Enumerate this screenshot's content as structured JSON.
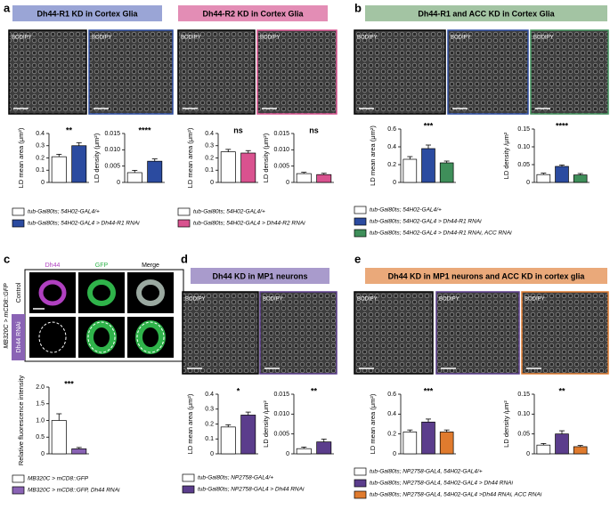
{
  "panel_labels": [
    "a",
    "b",
    "c",
    "d",
    "e"
  ],
  "headers": [
    "Dh44-R1 KD in Cortex Glia",
    "Dh44-R2 KD in Cortex Glia",
    "Dh44-R1 and ACC KD in Cortex Glia",
    "Dh44 KD in MP1 neurons",
    "Dh44 KD in MP1 neurons and ACC KD in cortex glia"
  ],
  "image_label": "BODIPY",
  "panel_c": {
    "columns": [
      "Dh44",
      "GFP",
      "Merge"
    ],
    "rows": [
      "Control",
      "Dh44 RNAi"
    ],
    "genotype": "MB320C > mCD8::GFP"
  },
  "legends": [
    [
      {
        "label": "tub-Gal80ts; 54H02-GAL4/+",
        "color": "#ffffff"
      },
      {
        "label": "tub-Gal80ts; 54H02-GAL4 > Dh44-R1 RNAi",
        "color": "#2b4ba0"
      }
    ],
    [
      {
        "label": "tub-Gal80ts; 54H02-GAL4/+",
        "color": "#ffffff"
      },
      {
        "label": "tub-Gal80ts; 54H02-GAL4 > Dh44-R2 RNAi",
        "color": "#d9528f"
      }
    ],
    [
      {
        "label": "tub-Gal80ts; 54H02-GAL4/+",
        "color": "#ffffff"
      },
      {
        "label": "tub-Gal80ts; 54H02-GAL4 > Dh44-R1 RNAi",
        "color": "#2b4ba0"
      },
      {
        "label": "tub-Gal80ts; 54H02-GAL4 > Dh44-R1 RNAi, ACC RNAi",
        "color": "#3f8f5a"
      }
    ],
    [
      {
        "label": "MB320C > mCD8::GFP",
        "color": "#ffffff"
      },
      {
        "label": "MB320C > mCD8::GFP, Dh44 RNAi",
        "color": "#8a63b5"
      }
    ],
    [
      {
        "label": "tub-Gal80ts; NP2758-GAL4/+",
        "color": "#ffffff"
      },
      {
        "label": "tub-Gal80ts; NP2758-GAL4 > Dh44 RNAi",
        "color": "#5b3d8c"
      }
    ],
    [
      {
        "label": "tub-Gal80ts; NP2758-GAL4, 54H02-GAL4/+",
        "color": "#ffffff"
      },
      {
        "label": "tub-Gal80ts; NP2758-GAL4, 54H02-GAL4 > Dh44 RNAi",
        "color": "#5b3d8c"
      },
      {
        "label": "tub-Gal80ts; NP2758-GAL4, 54H02-GAL4 >Dh44 RNAi, ACC RNAi",
        "color": "#e07b2e"
      }
    ]
  ],
  "chart_data": [
    {
      "type": "bar",
      "ylabel": "LD mean area (μm²)",
      "ylim": [
        0,
        0.4
      ],
      "yticks": [
        0,
        0.1,
        0.2,
        0.3,
        0.4
      ],
      "values": [
        0.21,
        0.3
      ],
      "errors": [
        0.02,
        0.025
      ],
      "colors": [
        "#ffffff",
        "#2b4ba0"
      ],
      "significance": "**"
    },
    {
      "type": "bar",
      "ylabel": "LD density (μm²)",
      "ylim": [
        0,
        0.015
      ],
      "yticks": [
        0,
        0.005,
        {
          "value": 0.01,
          "label": "0.010"
        },
        0.015
      ],
      "values": [
        0.003,
        0.0065
      ],
      "errors": [
        0.0007,
        0.0007
      ],
      "colors": [
        "#ffffff",
        "#2b4ba0"
      ],
      "significance": "****"
    },
    {
      "type": "bar",
      "ylabel": "LD mean area (μm²)",
      "ylim": [
        0,
        0.4
      ],
      "yticks": [
        0,
        0.1,
        0.2,
        0.3,
        0.4
      ],
      "values": [
        0.25,
        0.24
      ],
      "errors": [
        0.02,
        0.02
      ],
      "colors": [
        "#ffffff",
        "#d9528f"
      ],
      "significance": "ns"
    },
    {
      "type": "bar",
      "ylabel": "LD density (μm²)",
      "ylim": [
        0,
        0.015
      ],
      "yticks": [
        0,
        0.005,
        {
          "value": 0.01,
          "label": "0.010"
        },
        0.015
      ],
      "values": [
        0.0027,
        0.0024
      ],
      "errors": [
        0.0004,
        0.0004
      ],
      "colors": [
        "#ffffff",
        "#d9528f"
      ],
      "significance": "ns"
    },
    {
      "type": "bar",
      "ylabel": "LD mean area (μm²)",
      "ylim": [
        0,
        0.6
      ],
      "yticks": [
        0,
        0.2,
        0.4,
        0.6
      ],
      "values": [
        0.26,
        0.38,
        0.22
      ],
      "errors": [
        0.03,
        0.04,
        0.02
      ],
      "colors": [
        "#ffffff",
        "#2b4ba0",
        "#3f8f5a"
      ],
      "significance": "***"
    },
    {
      "type": "bar",
      "ylabel": "LD density /μm²",
      "ylim": [
        0,
        0.15
      ],
      "yticks": [
        0,
        0.05,
        {
          "value": 0.1,
          "label": "0.10"
        },
        0.15
      ],
      "values": [
        0.022,
        0.045,
        0.021
      ],
      "errors": [
        0.004,
        0.004,
        0.004
      ],
      "colors": [
        "#ffffff",
        "#2b4ba0",
        "#3f8f5a"
      ],
      "significance": "****"
    },
    {
      "type": "bar",
      "ylabel": "Relative fluorescence intensity",
      "ylim": [
        0,
        2
      ],
      "yticks": [
        0,
        0.5,
        {
          "value": 1,
          "label": "1.0"
        },
        1.5,
        {
          "value": 2,
          "label": "2.0"
        }
      ],
      "values": [
        1.0,
        0.15
      ],
      "errors": [
        0.2,
        0.04
      ],
      "colors": [
        "#ffffff",
        "#8a63b5"
      ],
      "significance": "***"
    },
    {
      "type": "bar",
      "ylabel": "LD mean area (μm²)",
      "ylim": [
        0,
        0.4
      ],
      "yticks": [
        0,
        0.1,
        0.2,
        0.3,
        0.4
      ],
      "values": [
        0.18,
        0.26
      ],
      "errors": [
        0.015,
        0.02
      ],
      "colors": [
        "#ffffff",
        "#5b3d8c"
      ],
      "significance": "*"
    },
    {
      "type": "bar",
      "ylabel": "LD density /μm²",
      "ylim": [
        0,
        0.015
      ],
      "yticks": [
        0,
        0.005,
        {
          "value": 0.01,
          "label": "0.010"
        },
        0.015
      ],
      "values": [
        0.0013,
        0.003
      ],
      "errors": [
        0.0004,
        0.0007
      ],
      "colors": [
        "#ffffff",
        "#5b3d8c"
      ],
      "significance": "**"
    },
    {
      "type": "bar",
      "ylabel": "LD mean area (μm²)",
      "ylim": [
        0,
        0.6
      ],
      "yticks": [
        0,
        0.2,
        0.4,
        0.6
      ],
      "values": [
        0.22,
        0.32,
        0.22
      ],
      "errors": [
        0.02,
        0.03,
        0.02
      ],
      "colors": [
        "#ffffff",
        "#5b3d8c",
        "#e07b2e"
      ],
      "significance": "***"
    },
    {
      "type": "bar",
      "ylabel": "LD density /μm²",
      "ylim": [
        0,
        0.15
      ],
      "yticks": [
        0,
        0.05,
        {
          "value": 0.1,
          "label": "0.10"
        },
        0.15
      ],
      "values": [
        0.022,
        0.05,
        0.018
      ],
      "errors": [
        0.004,
        0.008,
        0.003
      ],
      "colors": [
        "#ffffff",
        "#5b3d8c",
        "#e07b2e"
      ],
      "significance": "**"
    }
  ]
}
